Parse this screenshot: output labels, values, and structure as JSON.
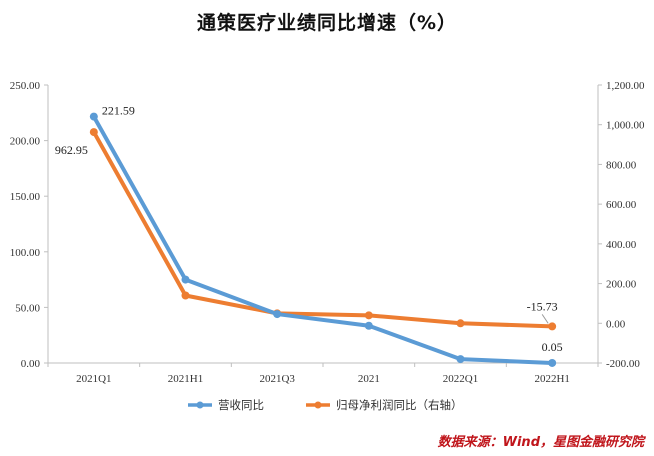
{
  "chart_data": {
    "type": "line",
    "title": "通策医疗业绩同比增速（%）",
    "categories": [
      "2021Q1",
      "2021H1",
      "2021Q3",
      "2021",
      "2022Q1",
      "2022H1"
    ],
    "series": [
      {
        "name": "营收同比",
        "axis": "left",
        "color": "#5b9bd5",
        "values": [
          221.59,
          75.0,
          44.0,
          33.5,
          3.5,
          0.05
        ]
      },
      {
        "name": "归母净利润同比（右轴）",
        "axis": "right",
        "color": "#ed7d31",
        "values": [
          962.95,
          140.0,
          50.0,
          40.0,
          0.0,
          -15.73
        ]
      }
    ],
    "y_left": {
      "range": [
        0,
        250
      ],
      "ticks": [
        "0.00",
        "50.00",
        "100.00",
        "150.00",
        "200.00",
        "250.00"
      ]
    },
    "y_right": {
      "range": [
        -200,
        1200
      ],
      "ticks": [
        "-200.00",
        "0.00",
        "200.00",
        "400.00",
        "600.00",
        "800.00",
        "1,000.00",
        "1,200.00"
      ]
    },
    "data_labels": [
      {
        "series": 0,
        "index": 0,
        "text": "221.59"
      },
      {
        "series": 1,
        "index": 0,
        "text": "962.95"
      },
      {
        "series": 1,
        "index": 5,
        "text": "-15.73"
      },
      {
        "series": 0,
        "index": 5,
        "text": "0.05"
      }
    ],
    "grid": false,
    "legend_position": "bottom"
  },
  "source": "数据来源：Wind，星图金融研究院"
}
